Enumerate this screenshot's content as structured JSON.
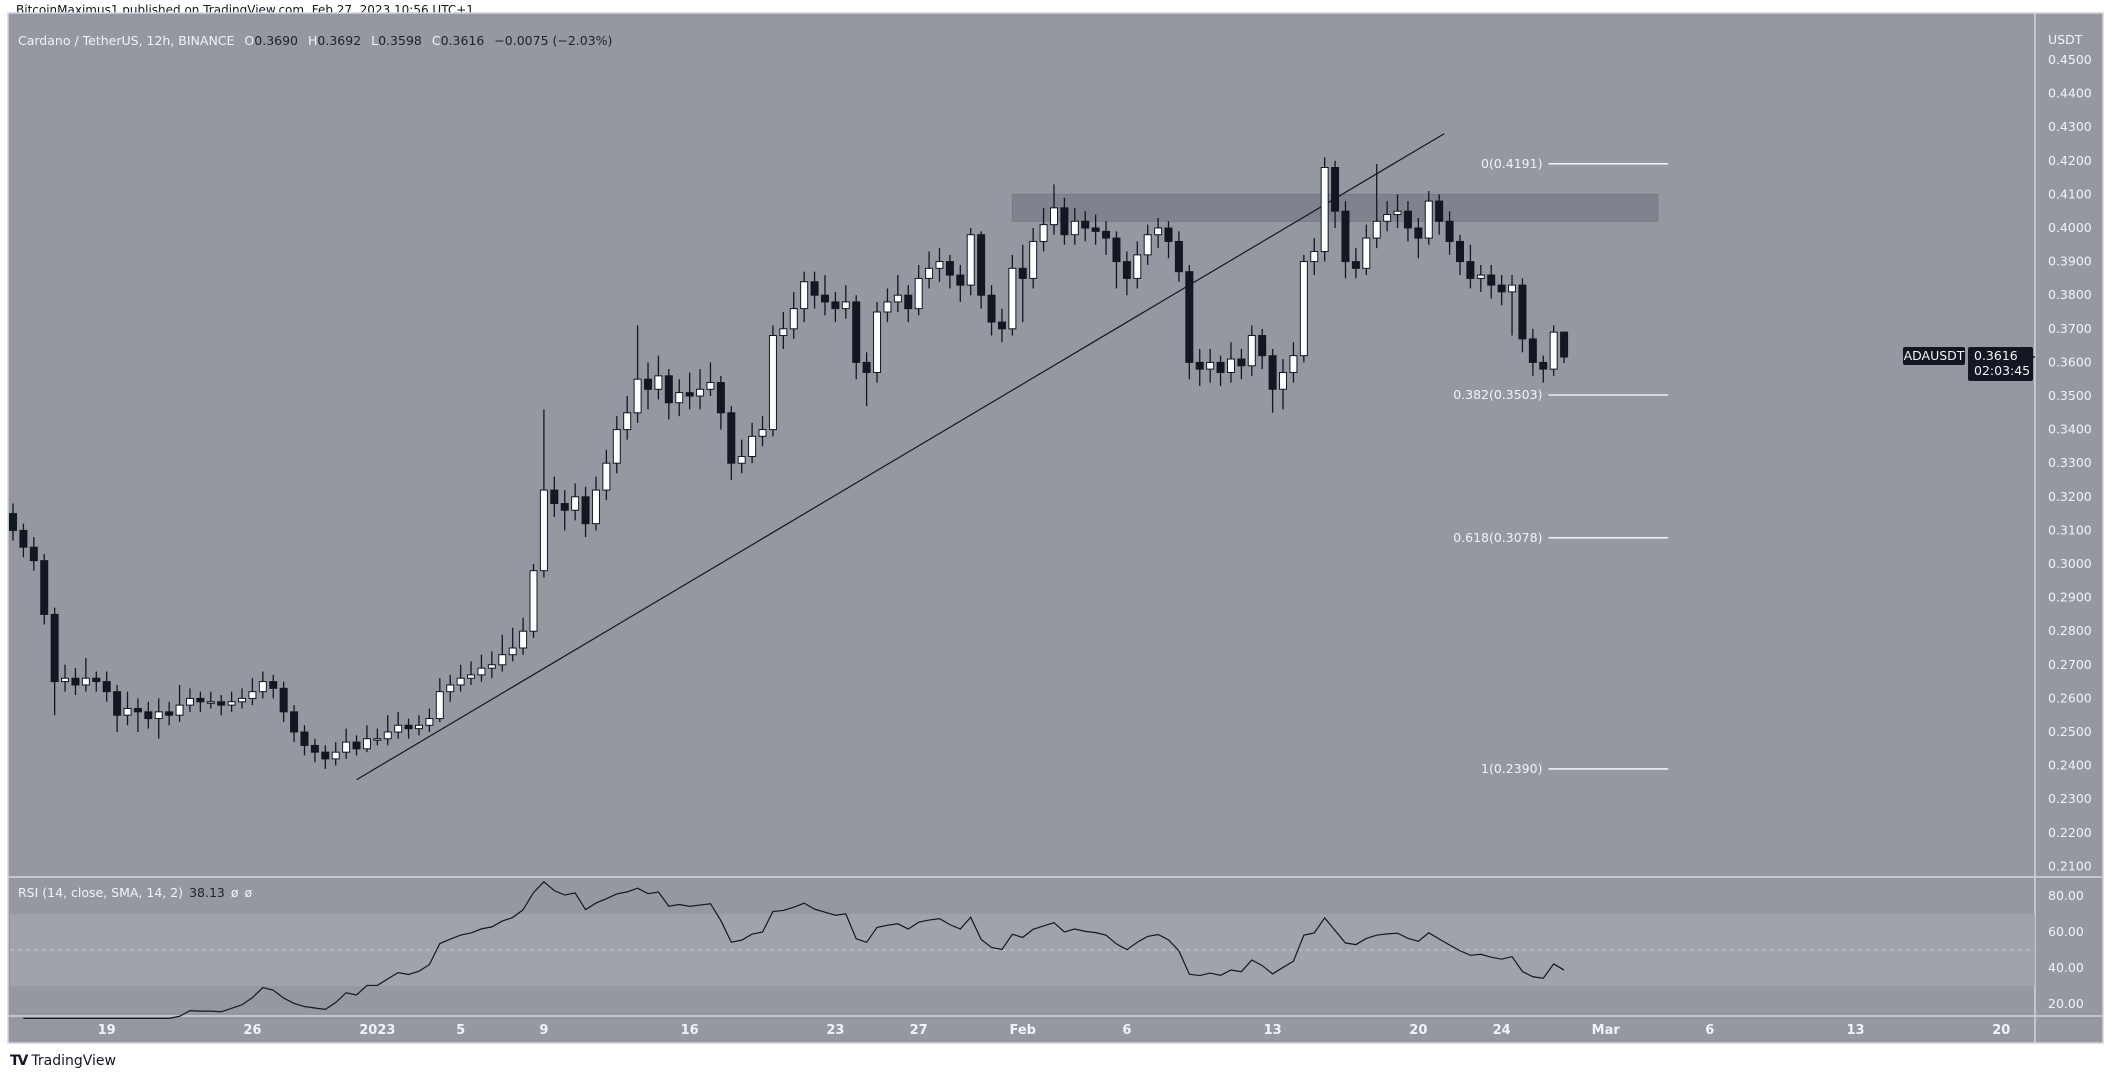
{
  "header": {
    "published": "BitcoinMaximus1 published on TradingView.com, Feb 27, 2023 10:56 UTC+1",
    "symbol": "Cardano / TetherUS, 12h, BINANCE",
    "o_label": "O",
    "o": "0.3690",
    "h_label": "H",
    "h": "0.3692",
    "l_label": "L",
    "l": "0.3598",
    "c_label": "C",
    "c": "0.3616",
    "change": "−0.0075 (−2.03%)"
  },
  "rsi_legend": {
    "label": "RSI (14, close, SMA, 14, 2)",
    "value": "38.13",
    "na1": "ø",
    "na2": "ø"
  },
  "price_axis": {
    "unit": "USDT",
    "ticks": [
      "0.4500",
      "0.4400",
      "0.4300",
      "0.4200",
      "0.4100",
      "0.4000",
      "0.3900",
      "0.3800",
      "0.3700",
      "0.3600",
      "0.3500",
      "0.3400",
      "0.3300",
      "0.3200",
      "0.3100",
      "0.3000",
      "0.2900",
      "0.2800",
      "0.2700",
      "0.2600",
      "0.2500",
      "0.2400",
      "0.2300",
      "0.2200",
      "0.2100"
    ],
    "symbol_tag": "ADAUSDT",
    "last_price": "0.3616",
    "countdown": "02:03:45"
  },
  "rsi_axis": {
    "ticks": [
      "80.00",
      "60.00",
      "40.00",
      "20.00"
    ]
  },
  "time_axis": [
    {
      "label": "19",
      "date": "2022-12-19"
    },
    {
      "label": "26",
      "date": "2022-12-26"
    },
    {
      "label": "2023",
      "date": "2023-01-01"
    },
    {
      "label": "5",
      "date": "2023-01-05"
    },
    {
      "label": "9",
      "date": "2023-01-09"
    },
    {
      "label": "16",
      "date": "2023-01-16"
    },
    {
      "label": "23",
      "date": "2023-01-23"
    },
    {
      "label": "27",
      "date": "2023-01-27"
    },
    {
      "label": "Feb",
      "date": "2023-02-01"
    },
    {
      "label": "6",
      "date": "2023-02-06"
    },
    {
      "label": "13",
      "date": "2023-02-13"
    },
    {
      "label": "20",
      "date": "2023-02-20"
    },
    {
      "label": "24",
      "date": "2023-02-24"
    },
    {
      "label": "Mar",
      "date": "2023-03-01"
    },
    {
      "label": "6",
      "date": "2023-03-06"
    },
    {
      "label": "13",
      "date": "2023-03-13"
    },
    {
      "label": "20",
      "date": "2023-03-20"
    }
  ],
  "footer": {
    "brand": "TradingView"
  },
  "colors": {
    "background": "#9598a1",
    "up": "#ffffff",
    "down": "#131722",
    "line": "#131722",
    "fib": "#ffffff",
    "zone": "#787b86",
    "rsi_band": "#a3a6ae"
  },
  "chart_data": {
    "type": "candlestick",
    "interval": "12h",
    "first_candle": "2022-12-14T12:00:00Z",
    "ylim": [
      0.205,
      0.455
    ],
    "first_open": 0.315,
    "close": [
      0.31,
      0.305,
      0.301,
      0.285,
      0.265,
      0.266,
      0.264,
      0.266,
      0.265,
      0.262,
      0.255,
      0.257,
      0.256,
      0.254,
      0.256,
      0.255,
      0.258,
      0.26,
      0.259,
      0.259,
      0.258,
      0.259,
      0.26,
      0.262,
      0.265,
      0.263,
      0.256,
      0.25,
      0.246,
      0.244,
      0.242,
      0.244,
      0.247,
      0.245,
      0.248,
      0.248,
      0.25,
      0.252,
      0.251,
      0.252,
      0.254,
      0.262,
      0.264,
      0.266,
      0.267,
      0.269,
      0.27,
      0.273,
      0.275,
      0.28,
      0.298,
      0.322,
      0.318,
      0.316,
      0.32,
      0.312,
      0.322,
      0.33,
      0.34,
      0.345,
      0.355,
      0.352,
      0.356,
      0.348,
      0.351,
      0.35,
      0.352,
      0.354,
      0.345,
      0.33,
      0.332,
      0.338,
      0.34,
      0.368,
      0.37,
      0.376,
      0.384,
      0.38,
      0.378,
      0.376,
      0.378,
      0.36,
      0.357,
      0.375,
      0.378,
      0.38,
      0.376,
      0.385,
      0.388,
      0.39,
      0.386,
      0.383,
      0.398,
      0.38,
      0.372,
      0.37,
      0.388,
      0.385,
      0.396,
      0.401,
      0.406,
      0.398,
      0.402,
      0.4,
      0.399,
      0.397,
      0.39,
      0.385,
      0.392,
      0.398,
      0.4,
      0.396,
      0.387,
      0.36,
      0.358,
      0.36,
      0.357,
      0.361,
      0.359,
      0.368,
      0.362,
      0.352,
      0.357,
      0.362,
      0.39,
      0.393,
      0.418,
      0.405,
      0.39,
      0.388,
      0.397,
      0.402,
      0.404,
      0.405,
      0.4,
      0.397,
      0.408,
      0.402,
      0.396,
      0.39,
      0.385,
      0.386,
      0.383,
      0.381,
      0.383,
      0.367,
      0.36,
      0.358,
      0.369,
      0.3616
    ],
    "high": [
      0.318,
      0.312,
      0.308,
      0.303,
      0.287,
      0.27,
      0.269,
      0.272,
      0.268,
      0.268,
      0.264,
      0.262,
      0.26,
      0.259,
      0.26,
      0.259,
      0.264,
      0.263,
      0.262,
      0.262,
      0.261,
      0.262,
      0.263,
      0.266,
      0.268,
      0.267,
      0.265,
      0.258,
      0.252,
      0.248,
      0.246,
      0.247,
      0.251,
      0.249,
      0.252,
      0.251,
      0.255,
      0.256,
      0.254,
      0.255,
      0.257,
      0.266,
      0.267,
      0.27,
      0.271,
      0.273,
      0.274,
      0.279,
      0.281,
      0.284,
      0.3,
      0.346,
      0.326,
      0.322,
      0.324,
      0.323,
      0.326,
      0.334,
      0.344,
      0.35,
      0.371,
      0.36,
      0.362,
      0.358,
      0.355,
      0.357,
      0.358,
      0.36,
      0.356,
      0.347,
      0.337,
      0.342,
      0.344,
      0.371,
      0.375,
      0.381,
      0.387,
      0.387,
      0.386,
      0.381,
      0.383,
      0.38,
      0.363,
      0.378,
      0.382,
      0.386,
      0.383,
      0.389,
      0.393,
      0.394,
      0.392,
      0.389,
      0.4,
      0.399,
      0.383,
      0.376,
      0.392,
      0.395,
      0.4,
      0.406,
      0.413,
      0.409,
      0.406,
      0.405,
      0.404,
      0.402,
      0.399,
      0.393,
      0.396,
      0.401,
      0.403,
      0.402,
      0.399,
      0.389,
      0.364,
      0.364,
      0.362,
      0.366,
      0.364,
      0.371,
      0.37,
      0.364,
      0.361,
      0.366,
      0.392,
      0.397,
      0.421,
      0.42,
      0.408,
      0.394,
      0.401,
      0.419,
      0.408,
      0.41,
      0.408,
      0.403,
      0.411,
      0.41,
      0.405,
      0.398,
      0.395,
      0.389,
      0.389,
      0.386,
      0.386,
      0.385,
      0.37,
      0.362,
      0.371,
      0.3692
    ],
    "low": [
      0.307,
      0.302,
      0.298,
      0.282,
      0.255,
      0.262,
      0.261,
      0.262,
      0.262,
      0.259,
      0.25,
      0.252,
      0.25,
      0.251,
      0.248,
      0.252,
      0.253,
      0.256,
      0.256,
      0.257,
      0.255,
      0.256,
      0.257,
      0.258,
      0.26,
      0.26,
      0.253,
      0.247,
      0.243,
      0.241,
      0.239,
      0.24,
      0.242,
      0.243,
      0.244,
      0.246,
      0.246,
      0.248,
      0.248,
      0.249,
      0.25,
      0.253,
      0.259,
      0.262,
      0.264,
      0.265,
      0.266,
      0.268,
      0.271,
      0.273,
      0.278,
      0.296,
      0.314,
      0.31,
      0.313,
      0.308,
      0.31,
      0.319,
      0.327,
      0.337,
      0.342,
      0.346,
      0.349,
      0.343,
      0.344,
      0.346,
      0.346,
      0.35,
      0.34,
      0.325,
      0.327,
      0.33,
      0.335,
      0.338,
      0.364,
      0.367,
      0.372,
      0.376,
      0.374,
      0.372,
      0.373,
      0.355,
      0.347,
      0.354,
      0.372,
      0.375,
      0.372,
      0.374,
      0.382,
      0.384,
      0.382,
      0.378,
      0.38,
      0.376,
      0.368,
      0.366,
      0.368,
      0.372,
      0.382,
      0.393,
      0.398,
      0.395,
      0.395,
      0.396,
      0.395,
      0.392,
      0.382,
      0.38,
      0.382,
      0.389,
      0.394,
      0.391,
      0.384,
      0.355,
      0.353,
      0.354,
      0.353,
      0.354,
      0.355,
      0.356,
      0.358,
      0.345,
      0.346,
      0.354,
      0.36,
      0.386,
      0.39,
      0.4,
      0.385,
      0.385,
      0.386,
      0.394,
      0.399,
      0.4,
      0.396,
      0.391,
      0.395,
      0.398,
      0.392,
      0.386,
      0.382,
      0.381,
      0.379,
      0.377,
      0.368,
      0.363,
      0.356,
      0.354,
      0.356,
      0.3598
    ],
    "indicator": {
      "name": "RSI",
      "length": 14,
      "source": "close",
      "levels": [
        70,
        50,
        30
      ],
      "ylim": [
        10,
        90
      ],
      "last_value": 38.13
    },
    "trendline": {
      "from": {
        "date": "2022-12-31T00:00:00Z",
        "price": 0.2358
      },
      "to": {
        "date": "2023-02-21T06:00:00Z",
        "price": 0.4281
      }
    },
    "resistance_zone": {
      "from_date": "2023-01-31T12:00:00Z",
      "to_date": "2023-03-03T12:00:00Z",
      "low": 0.402,
      "high": 0.41
    },
    "fib_from_date": "2023-02-26T06:00:00Z",
    "fib_to_date": "2023-03-04T00:00:00Z",
    "fibonacci": [
      {
        "label": "0(0.4191)",
        "level": 0,
        "price": 0.4191
      },
      {
        "label": "0.382(0.3503)",
        "level": 0.382,
        "price": 0.3503
      },
      {
        "label": "0.618(0.3078)",
        "level": 0.618,
        "price": 0.3078
      },
      {
        "label": "1(0.2390)",
        "level": 1,
        "price": 0.239
      }
    ]
  }
}
